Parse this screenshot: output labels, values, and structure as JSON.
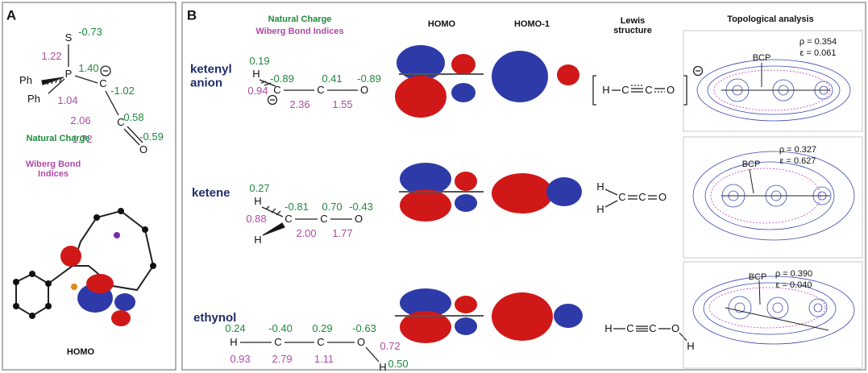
{
  "panel_a": {
    "label": "A",
    "atoms": {
      "s": "S",
      "p": "P",
      "c1": "C",
      "c2": "C",
      "o": "O",
      "ph1": "Ph",
      "ph2": "Ph"
    },
    "charges": {
      "s": "-0.73",
      "p": "1.40",
      "c1": "-1.02",
      "c2": "0.58",
      "o": "-0.59"
    },
    "wbi": {
      "ps": "1.22",
      "pc": "1.04",
      "cc": "2.06",
      "co": "1.72"
    },
    "legend": {
      "natural_charge": "Natural Charge",
      "wiberg": "Wiberg Bond Indices"
    },
    "orbital_label": "HOMO"
  },
  "panel_b": {
    "label": "B",
    "headers": {
      "natural_charge": "Natural Charge",
      "wiberg": "Wiberg Bond Indices",
      "homo": "HOMO",
      "homo1": "HOMO-1",
      "lewis": "Lewis structure",
      "topology": "Topological analysis"
    },
    "rows": [
      {
        "name": "ketenyl anion",
        "atoms": [
          "H",
          "C",
          "C",
          "O"
        ],
        "charges": [
          "0.19",
          "-0.89",
          "0.41",
          "-0.89"
        ],
        "wbi": [
          "0.94",
          "2.36",
          "1.55"
        ],
        "lewis": [
          "H",
          "C",
          "C",
          "O"
        ],
        "rho": "ρ = 0.354",
        "eps": "ε = 0.061",
        "bcp": "BCP"
      },
      {
        "name": "ketene",
        "atoms": [
          "H",
          "H",
          "C",
          "C",
          "O"
        ],
        "charges": [
          "0.27",
          "-0.81",
          "0.70",
          "-0.43"
        ],
        "wbi": [
          "0.88",
          "2.00",
          "1.77"
        ],
        "lewis": [
          "H",
          "H",
          "C",
          "C",
          "O"
        ],
        "rho": "ρ = 0.327",
        "eps": "ε = 0.627",
        "bcp": "BCP"
      },
      {
        "name": "ethynol",
        "atoms": [
          "H",
          "C",
          "C",
          "O",
          "H"
        ],
        "charges": [
          "0.24",
          "-0.40",
          "0.29",
          "-0.63",
          "0.50"
        ],
        "wbi": [
          "0.93",
          "2.79",
          "1.11",
          "0.72"
        ],
        "lewis": [
          "H",
          "C",
          "C",
          "O",
          "H"
        ],
        "rho": "ρ = 0.390",
        "eps": "ε = 0.040",
        "bcp": "BCP"
      }
    ]
  }
}
